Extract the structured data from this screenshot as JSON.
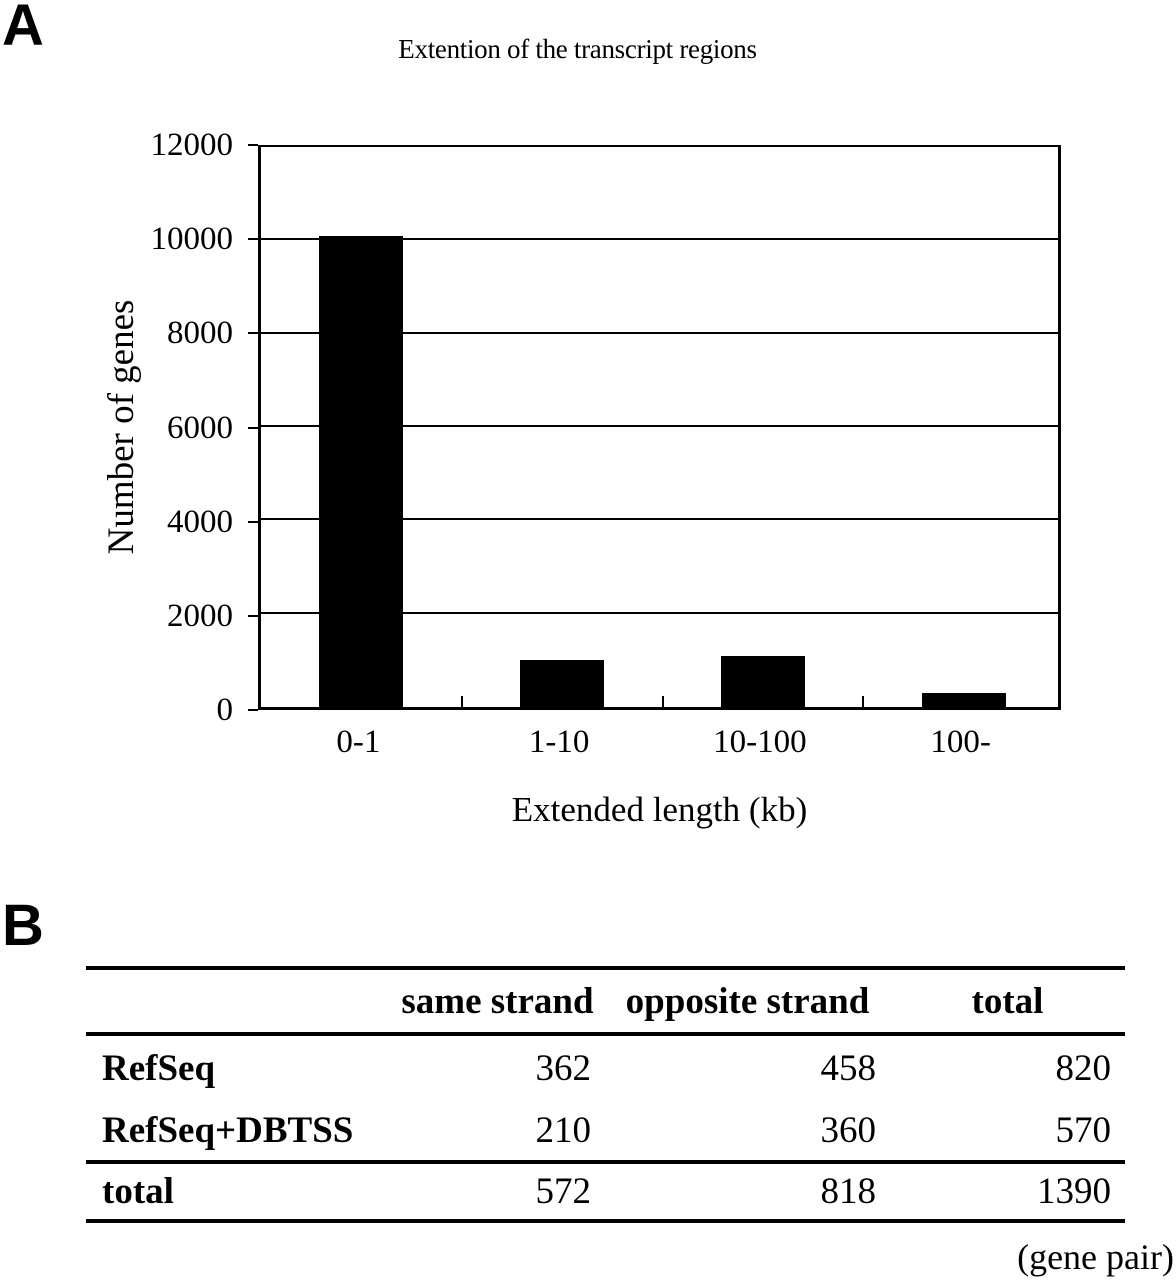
{
  "figure": {
    "panel_a_label": "A",
    "panel_b_label": "B"
  },
  "chart_data": {
    "type": "bar",
    "title": "Extention of the transcript regions",
    "xlabel": "Extended length (kb)",
    "ylabel": "Number of genes",
    "categories": [
      "0-1",
      "1-10",
      "10-100",
      "100-"
    ],
    "values": [
      10100,
      1000,
      1100,
      290
    ],
    "ylim": [
      0,
      12000
    ],
    "yticks": [
      0,
      2000,
      4000,
      6000,
      8000,
      10000,
      12000
    ],
    "grid": true,
    "legend_position": "none",
    "bar_color": "#000000"
  },
  "table": {
    "columns": [
      "same strand",
      "opposite strand",
      "total"
    ],
    "rows": [
      {
        "label": "RefSeq",
        "values": [
          "362",
          "458",
          "820"
        ]
      },
      {
        "label": "RefSeq+DBTSS",
        "values": [
          "210",
          "360",
          "570"
        ]
      },
      {
        "label": "total",
        "values": [
          "572",
          "818",
          "1390"
        ]
      }
    ],
    "unit_note": "(gene pair)"
  }
}
